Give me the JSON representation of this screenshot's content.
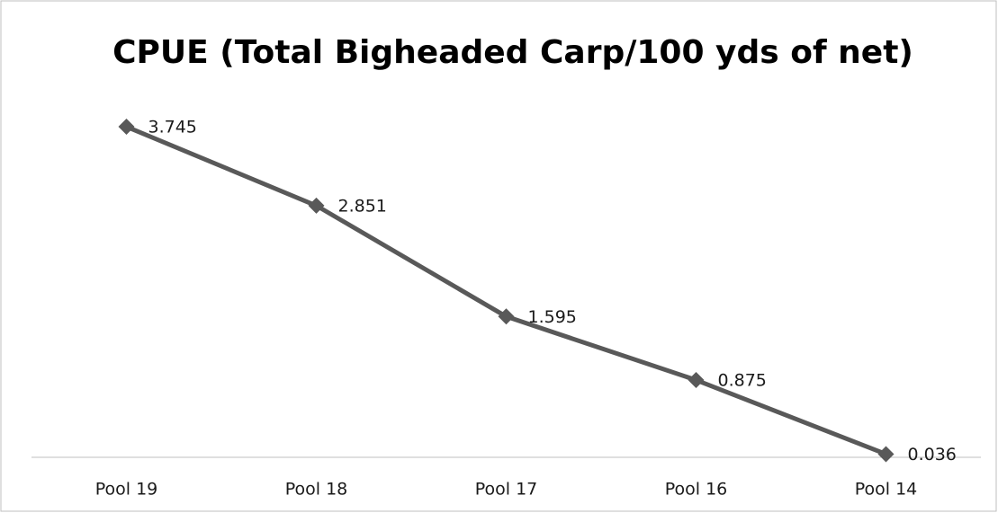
{
  "chart_data": {
    "type": "line",
    "title": "CPUE (Total Bigheaded Carp/100 yds of net)",
    "categories": [
      "Pool 19",
      "Pool 18",
      "Pool 17",
      "Pool 16",
      "Pool 14"
    ],
    "values": [
      3.745,
      2.851,
      1.595,
      0.875,
      0.036
    ],
    "color": "#595959",
    "ylim": [
      0,
      4
    ]
  }
}
